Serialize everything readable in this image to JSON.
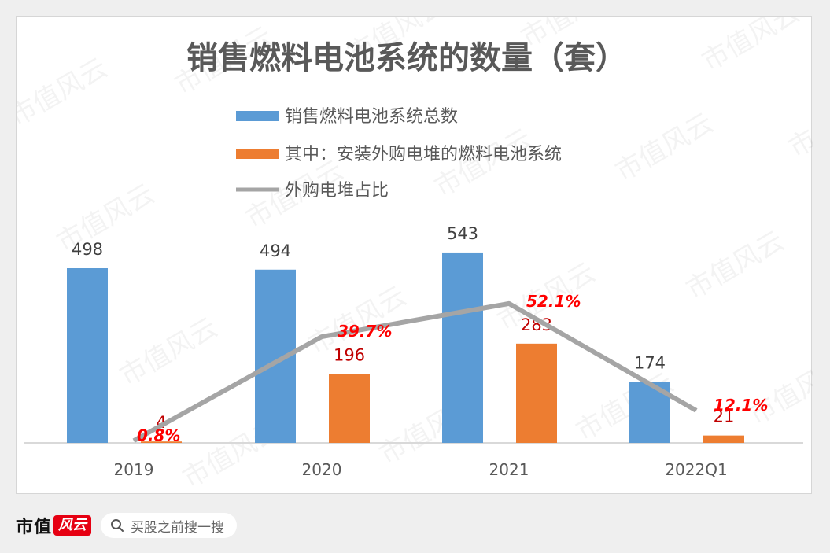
{
  "watermark": "市值风云",
  "chart_data": {
    "type": "bar",
    "title": "销售燃料电池系统的数量（套）",
    "categories": [
      "2019",
      "2020",
      "2021",
      "2022Q1"
    ],
    "series": [
      {
        "name": "销售燃料电池系统总数",
        "type": "bar",
        "color": "#5b9bd5",
        "values": [
          498,
          494,
          543,
          174
        ]
      },
      {
        "name": "其中：安装外购电堆的燃料电池系统",
        "type": "bar",
        "color": "#ed7d31",
        "values": [
          4,
          196,
          283,
          21
        ]
      },
      {
        "name": "外购电堆占比",
        "type": "line",
        "color": "#a5a5a5",
        "values": [
          0.8,
          39.7,
          52.1,
          12.1
        ],
        "labels": [
          "0.8%",
          "39.7%",
          "52.1%",
          "12.1%"
        ]
      }
    ],
    "ylim": [
      0,
      600
    ],
    "line_ylim": [
      0,
      100
    ],
    "legend_position": "top",
    "grid": false
  },
  "footer": {
    "brand": "市值",
    "brand_badge": "风云",
    "search_text": "买股之前搜一搜"
  }
}
